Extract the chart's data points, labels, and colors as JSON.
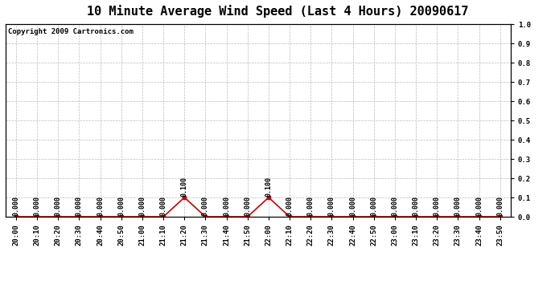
{
  "title": "10 Minute Average Wind Speed (Last 4 Hours) 20090617",
  "copyright_text": "Copyright 2009 Cartronics.com",
  "line_color": "#cc0000",
  "background_color": "#ffffff",
  "plot_bg_color": "#ffffff",
  "grid_color": "#bbbbbb",
  "x_labels": [
    "20:00",
    "20:10",
    "20:20",
    "20:30",
    "20:40",
    "20:50",
    "21:00",
    "21:10",
    "21:20",
    "21:30",
    "21:40",
    "21:50",
    "22:00",
    "22:10",
    "22:20",
    "22:30",
    "22:40",
    "22:50",
    "23:00",
    "23:10",
    "23:20",
    "23:30",
    "23:40",
    "23:50"
  ],
  "y_values": [
    0.0,
    0.0,
    0.0,
    0.0,
    0.0,
    0.0,
    0.0,
    0.0,
    0.1,
    0.0,
    0.0,
    0.0,
    0.1,
    0.0,
    0.0,
    0.0,
    0.0,
    0.0,
    0.0,
    0.0,
    0.0,
    0.0,
    0.0,
    0.0
  ],
  "ylim": [
    0.0,
    1.0
  ],
  "yticks": [
    0.0,
    0.1,
    0.2,
    0.3,
    0.4,
    0.5,
    0.6,
    0.7,
    0.8,
    0.9,
    1.0
  ],
  "marker": "s",
  "marker_size": 2.5,
  "line_width": 1.2,
  "title_fontsize": 11,
  "tick_fontsize": 6.5,
  "annotation_fontsize": 6,
  "copyright_fontsize": 6.5
}
